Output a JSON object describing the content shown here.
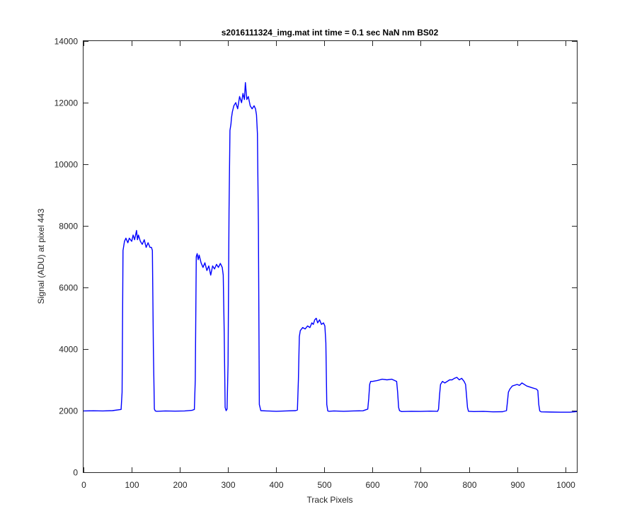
{
  "chart_data": {
    "type": "line",
    "title": "s2016111324_img.mat int time = 0.1 sec  NaN nm BS02",
    "xlabel": "Track Pixels",
    "ylabel": "Signal (ADU) at pixel 443",
    "xlim": [
      0,
      1024
    ],
    "ylim": [
      0,
      14000
    ],
    "x_ticks": [
      0,
      100,
      200,
      300,
      400,
      500,
      600,
      700,
      800,
      900,
      1000
    ],
    "y_ticks": [
      0,
      2000,
      4000,
      6000,
      8000,
      10000,
      12000,
      14000
    ],
    "grid": false,
    "line_color": "#0000ff",
    "series": [
      {
        "x": [
          0,
          20,
          40,
          60,
          78,
          80,
          82,
          85,
          88,
          92,
          95,
          100,
          103,
          106,
          110,
          112,
          114,
          118,
          122,
          126,
          130,
          134,
          138,
          141,
          143,
          145,
          147,
          149,
          152,
          170,
          190,
          210,
          225,
          230,
          232,
          234,
          236,
          238,
          240,
          244,
          248,
          252,
          256,
          260,
          264,
          268,
          272,
          276,
          280,
          284,
          288,
          290,
          292,
          294,
          296,
          298,
          300,
          302,
          304,
          306,
          307,
          309,
          312,
          316,
          320,
          324,
          328,
          331,
          334,
          336,
          339,
          342,
          346,
          350,
          354,
          357,
          359,
          361,
          363,
          365,
          368,
          380,
          400,
          420,
          440,
          444,
          446,
          448,
          450,
          455,
          460,
          465,
          470,
          474,
          477,
          480,
          483,
          486,
          490,
          494,
          498,
          501,
          503,
          505,
          507,
          509,
          520,
          540,
          560,
          580,
          590,
          592,
          594,
          596,
          600,
          610,
          620,
          630,
          640,
          650,
          652,
          654,
          656,
          660,
          680,
          700,
          720,
          735,
          737,
          739,
          741,
          745,
          750,
          760,
          765,
          770,
          775,
          780,
          785,
          790,
          793,
          795,
          797,
          799,
          810,
          830,
          850,
          870,
          878,
          880,
          882,
          885,
          890,
          900,
          905,
          910,
          920,
          930,
          940,
          943,
          945,
          947,
          950,
          970,
          990,
          1010,
          1024
        ],
        "y": [
          1990,
          1995,
          1990,
          2000,
          2040,
          2600,
          7200,
          7500,
          7600,
          7450,
          7600,
          7500,
          7700,
          7550,
          7850,
          7550,
          7700,
          7500,
          7400,
          7550,
          7300,
          7450,
          7300,
          7300,
          7200,
          4000,
          2050,
          1990,
          1980,
          1990,
          1985,
          1990,
          2010,
          2040,
          3000,
          7000,
          7100,
          6900,
          7050,
          6800,
          6650,
          6800,
          6550,
          6700,
          6400,
          6700,
          6600,
          6750,
          6650,
          6780,
          6650,
          6400,
          4500,
          2100,
          2000,
          2050,
          3500,
          8500,
          11100,
          11300,
          11500,
          11700,
          11900,
          12000,
          11800,
          12200,
          12000,
          12300,
          12100,
          12650,
          12100,
          12200,
          11900,
          11800,
          11900,
          11800,
          11600,
          11000,
          8000,
          2200,
          2000,
          1990,
          1980,
          1990,
          2000,
          2020,
          3000,
          4400,
          4600,
          4700,
          4650,
          4750,
          4700,
          4850,
          4800,
          4950,
          5000,
          4850,
          4950,
          4800,
          4850,
          4750,
          4200,
          2200,
          1990,
          1980,
          1990,
          1980,
          1990,
          1995,
          2050,
          2400,
          2850,
          2950,
          2950,
          2980,
          3020,
          3000,
          3020,
          2950,
          2600,
          2100,
          2000,
          1970,
          1980,
          1975,
          1985,
          1980,
          2050,
          2500,
          2850,
          2950,
          2900,
          3000,
          3000,
          3050,
          3080,
          3000,
          3050,
          2950,
          2850,
          2500,
          2100,
          1980,
          1970,
          1975,
          1960,
          1965,
          2000,
          2300,
          2600,
          2700,
          2800,
          2850,
          2820,
          2900,
          2800,
          2750,
          2700,
          2650,
          2200,
          1990,
          1960,
          1955,
          1950,
          1950,
          1970
        ]
      }
    ]
  }
}
